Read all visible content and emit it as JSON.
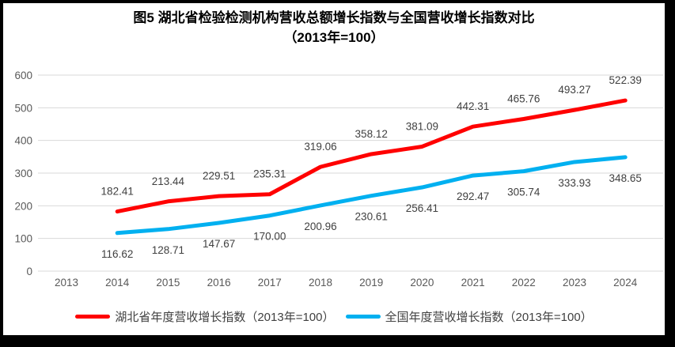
{
  "title": {
    "line1": "图5 湖北省检验检测机构营收总额增长指数与全国营收增长指数对比",
    "line2": "（2013年=100）"
  },
  "chart_data": {
    "type": "line",
    "title": "图5 湖北省检验检测机构营收总额增长指数与全国营收增长指数对比（2013年=100）",
    "categories": [
      "2013",
      "2014",
      "2015",
      "2016",
      "2017",
      "2018",
      "2019",
      "2020",
      "2021",
      "2022",
      "2023",
      "2024"
    ],
    "xlabel": "",
    "ylabel": "",
    "ylim": [
      0,
      600
    ],
    "y_ticks": [
      0,
      100,
      200,
      300,
      400,
      500,
      600
    ],
    "grid": true,
    "legend_position": "bottom",
    "colors": {
      "grid": "#D9D9D9",
      "axis_text": "#595959",
      "data_label_text": "#404040"
    },
    "series": [
      {
        "name": "湖北省年度营收增长指数（2013年=100）",
        "color": "#FF0000",
        "start_category": "2014",
        "values": [
          182.41,
          213.44,
          229.51,
          235.31,
          319.06,
          358.12,
          381.09,
          442.31,
          465.76,
          493.27,
          522.39
        ],
        "labels": [
          "182.41",
          "213.44",
          "229.51",
          "235.31",
          "319.06",
          "358.12",
          "381.09",
          "442.31",
          "465.76",
          "493.27",
          "522.39"
        ],
        "label_position": "above"
      },
      {
        "name": "全国年度营收增长指数（2013年=100）",
        "color": "#00B0F0",
        "start_category": "2014",
        "values": [
          116.62,
          128.71,
          147.67,
          170.0,
          200.96,
          230.61,
          256.41,
          292.47,
          305.74,
          333.93,
          348.65
        ],
        "labels": [
          "116.62",
          "128.71",
          "147.67",
          "170.00",
          "200.96",
          "230.61",
          "256.41",
          "292.47",
          "305.74",
          "333.93",
          "348.65"
        ],
        "label_position": "below"
      }
    ]
  }
}
